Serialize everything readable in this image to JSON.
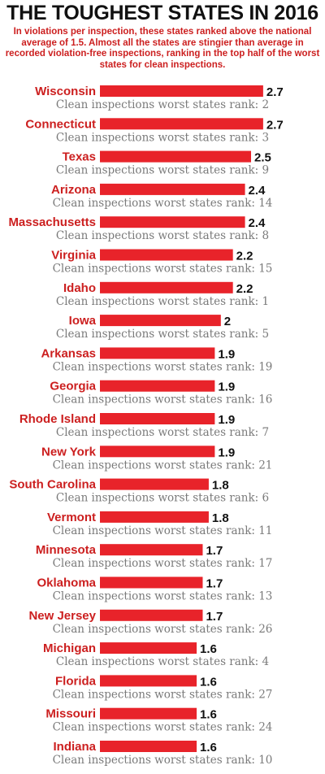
{
  "title": "THE TOUGHEST STATES IN 2016",
  "subtitle": "In violations per inspection, these states ranked above the national average of 1.5. Almost all the states are stingier than average in recorded violation-free inspections, ranking in the top half of the worst states for clean inspections.",
  "rank_label": "Clean inspections worst states rank:",
  "colors": {
    "bar": "#e8232a",
    "state_label": "#cc1f1f",
    "value": "#111111",
    "rank_text": "#7a7a7a"
  },
  "chart_data": {
    "type": "bar",
    "orientation": "horizontal",
    "title": "THE TOUGHEST STATES IN 2016",
    "categories": [
      "Wisconsin",
      "Connecticut",
      "Texas",
      "Arizona",
      "Massachusetts",
      "Virginia",
      "Idaho",
      "Iowa",
      "Arkansas",
      "Georgia",
      "Rhode Island",
      "New York",
      "South Carolina",
      "Vermont",
      "Minnesota",
      "Oklahoma",
      "New Jersey",
      "Michigan",
      "Florida",
      "Missouri",
      "Indiana"
    ],
    "values": [
      2.7,
      2.7,
      2.5,
      2.4,
      2.4,
      2.2,
      2.2,
      2,
      1.9,
      1.9,
      1.9,
      1.9,
      1.8,
      1.8,
      1.7,
      1.7,
      1.7,
      1.6,
      1.6,
      1.6,
      1.6
    ],
    "clean_inspections_worst_rank": [
      2,
      3,
      9,
      14,
      8,
      15,
      1,
      5,
      19,
      16,
      7,
      21,
      6,
      11,
      17,
      13,
      26,
      4,
      27,
      24,
      10
    ],
    "xlabel": "",
    "ylabel": "",
    "grid": false
  }
}
